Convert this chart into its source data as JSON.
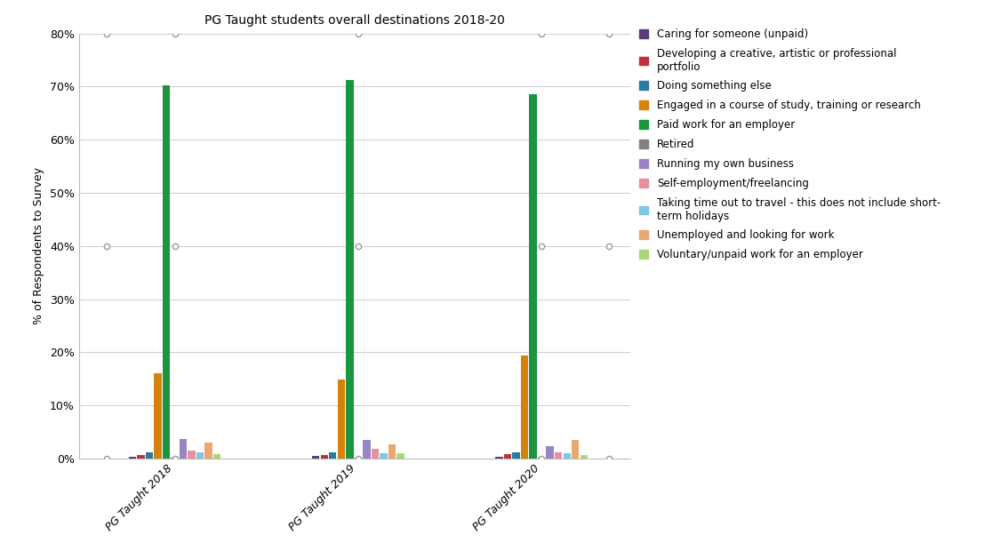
{
  "title": "PG Taught students overall destinations 2018-20",
  "ylabel": "% of Respondents to Survey",
  "groups": [
    "PG Taught 2018",
    "PG Taught 2019",
    "PG Taught 2020"
  ],
  "categories": [
    "Caring for someone (unpaid)",
    "Developing a creative, artistic or professional\nportfolio",
    "Doing something else",
    "Engaged in a course of study, training or research",
    "Paid work for an employer",
    "Retired",
    "Running my own business",
    "Self-employment/freelancing",
    "Taking time out to travel - this does not include short-\nterm holidays",
    "Unemployed and looking for work",
    "Voluntary/unpaid work for an employer"
  ],
  "colors": [
    "#5c3d7a",
    "#c0323a",
    "#2b7ba0",
    "#d4820a",
    "#1a9641",
    "#808080",
    "#9b84c2",
    "#e88fa0",
    "#7ec8e3",
    "#e8a870",
    "#a8d878"
  ],
  "values": {
    "PG Taught 2018": [
      0.3,
      0.7,
      1.1,
      16.0,
      70.3,
      0.2,
      3.6,
      1.4,
      1.2,
      2.9,
      0.8
    ],
    "PG Taught 2019": [
      0.4,
      0.6,
      1.1,
      14.9,
      71.2,
      0.1,
      3.5,
      1.8,
      1.0,
      2.7,
      1.0
    ],
    "PG Taught 2020": [
      0.3,
      0.8,
      1.1,
      19.3,
      68.5,
      0.1,
      2.3,
      1.2,
      0.9,
      3.5,
      0.6
    ]
  },
  "ylim": [
    0,
    80
  ],
  "yticks": [
    0,
    10,
    20,
    30,
    40,
    50,
    60,
    70,
    80
  ],
  "ytick_labels": [
    "0%",
    "10%",
    "20%",
    "30%",
    "40%",
    "50%",
    "60%",
    "70%",
    "80%"
  ],
  "background_color": "#ffffff",
  "title_fontsize": 10,
  "axis_fontsize": 9,
  "legend_fontsize": 8.5
}
